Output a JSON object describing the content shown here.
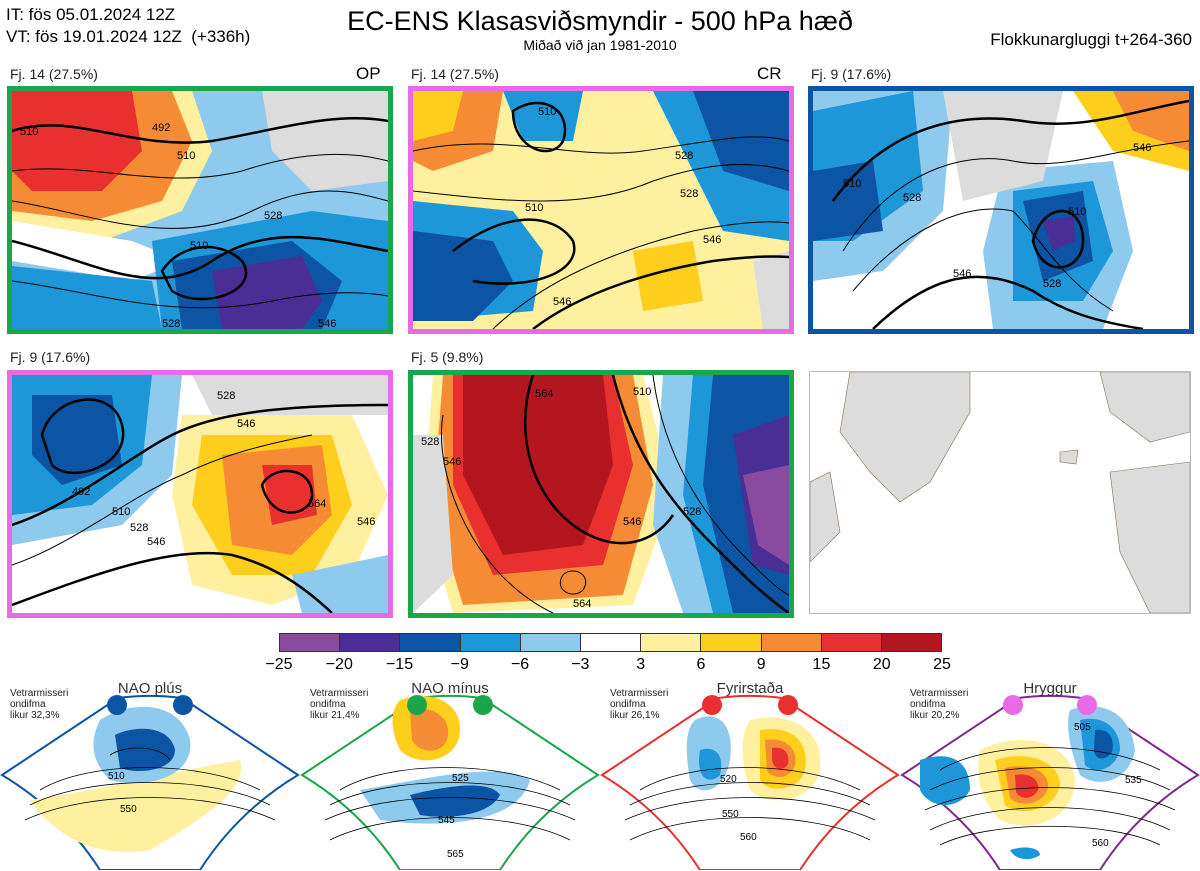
{
  "header": {
    "it_line": "IT: fös 05.01.2024 12Z",
    "vt_line": "VT: fös 19.01.2024 12Z  (+336h)",
    "title": "EC-ENS Klasasviðsmyndir - 500 hPa hæð",
    "subtitle": "Miðað við jan 1981-2010",
    "window": "Flokkunargluggi t+264-360"
  },
  "panels": [
    {
      "label": "Fj. 14 (27.5%)",
      "tag": "OP",
      "frame_color": "#1aa64a",
      "contours": [
        "510",
        "510",
        "528",
        "510",
        "528",
        "546",
        "492"
      ]
    },
    {
      "label": "Fj. 14 (27.5%)",
      "tag": "CR",
      "frame_color": "#e96ae6",
      "contours": [
        "510",
        "528",
        "528",
        "546",
        "546",
        "510"
      ]
    },
    {
      "label": "Fj. 9 (17.6%)",
      "tag": "",
      "frame_color": "#0b55a4",
      "contours": [
        "510",
        "528",
        "528",
        "546",
        "510",
        "546"
      ]
    },
    {
      "label": "Fj. 9 (17.6%)",
      "tag": "",
      "frame_color": "#e96ae6",
      "contours": [
        "528",
        "546",
        "492",
        "510",
        "528",
        "546",
        "564",
        "546"
      ]
    },
    {
      "label": "Fj. 5 (9.8%)",
      "tag": "",
      "frame_color": "#1aa64a",
      "contours": [
        "528",
        "546",
        "564",
        "510",
        "528",
        "546",
        "564"
      ]
    },
    {
      "label": "",
      "tag": "",
      "frame_color": "#bbbbbb",
      "contours": []
    }
  ],
  "colorbar": {
    "colors": [
      "#8a4aa0",
      "#4a2e95",
      "#0b55a4",
      "#1e97d8",
      "#8ec9ee",
      "#ffffff",
      "#fff0a0",
      "#fdcf1c",
      "#f58b35",
      "#e8312e",
      "#b3161e"
    ],
    "ticks": [
      "−25",
      "−20",
      "−15",
      "−9",
      "−6",
      "−3",
      "3",
      "6",
      "9",
      "15",
      "20",
      "25"
    ]
  },
  "regimes": [
    {
      "name": "NAO plús",
      "note": "Vetrarmisseri\nondifma\nlikur 32,3%",
      "color": "#0b55a4",
      "contours": [
        "510",
        "550"
      ]
    },
    {
      "name": "NAO mínus",
      "note": "Vetrarmisseri\nondifma\nlikur 21,4%",
      "color": "#1aa64a",
      "contours": [
        "525",
        "545",
        "565"
      ]
    },
    {
      "name": "Fyrirstaða",
      "note": "Vetrarmisseri\nondifma\nlikur 26,1%",
      "color": "#e8312e",
      "contours": [
        "520",
        "550",
        "560"
      ]
    },
    {
      "name": "Hryggur",
      "note": "Vetrarmisseri\nondifma\nlikur 20,2%",
      "color": "#e96ae6",
      "frame_color": "#7d2a8c",
      "contours": [
        "505",
        "535",
        "560"
      ]
    }
  ]
}
